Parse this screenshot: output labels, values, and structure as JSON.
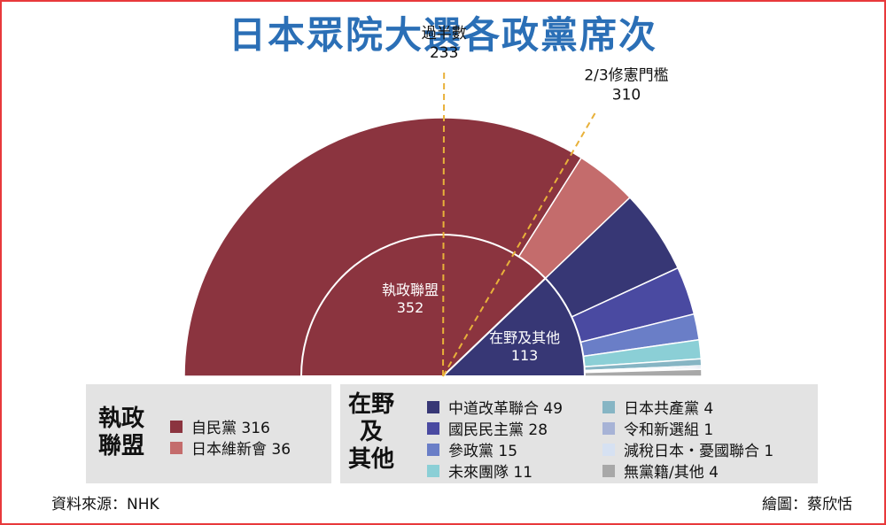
{
  "title": "日本眾院大選各政黨席次",
  "source": "資料來源：NHK",
  "credit": "繪圖：蔡欣恬",
  "chart_data": {
    "type": "pie",
    "shape": "semicircle",
    "total_seats": 465,
    "thresholds": [
      {
        "label": "過半數",
        "value": 233
      },
      {
        "label": "2/3修憲門檻",
        "value": 310
      }
    ],
    "inner": [
      {
        "name": "執政聯盟",
        "value": 352,
        "color": "#8b343f"
      },
      {
        "name": "在野及其他",
        "value": 113,
        "color": "#373775"
      }
    ],
    "outer": [
      {
        "name": "自民黨",
        "value": 316,
        "color": "#8b343f"
      },
      {
        "name": "日本維新會",
        "value": 36,
        "color": "#c46c6c"
      },
      {
        "name": "中道改革聯合",
        "value": 49,
        "color": "#373775"
      },
      {
        "name": "國民民主黨",
        "value": 28,
        "color": "#4a4aa1"
      },
      {
        "name": "參政黨",
        "value": 15,
        "color": "#6a7ec7"
      },
      {
        "name": "未來團隊",
        "value": 11,
        "color": "#8bcfd6"
      },
      {
        "name": "日本共產黨",
        "value": 4,
        "color": "#86b5c4"
      },
      {
        "name": "令和新選組",
        "value": 1,
        "color": "#a7b3d6"
      },
      {
        "name": "減稅日本・憂國聯合",
        "value": 1,
        "color": "#d6e1f2"
      },
      {
        "name": "無黨籍/其他",
        "value": 4,
        "color": "#a8a8a8"
      }
    ],
    "legend": {
      "ruling_title": [
        "執政",
        "聯盟"
      ],
      "opposition_title": [
        "在野",
        "及",
        "其他"
      ],
      "ruling": [
        {
          "text": "自民黨 316",
          "color": "#8b343f"
        },
        {
          "text": "日本維新會 36",
          "color": "#c46c6c"
        }
      ],
      "opposition_left": [
        {
          "text": "中道改革聯合 49",
          "color": "#373775"
        },
        {
          "text": "國民民主黨 28",
          "color": "#4a4aa1"
        },
        {
          "text": "參政黨 15",
          "color": "#6a7ec7"
        },
        {
          "text": "未來團隊 11",
          "color": "#8bcfd6"
        }
      ],
      "opposition_right": [
        {
          "text": "日本共產黨 4",
          "color": "#86b5c4"
        },
        {
          "text": "令和新選組 1",
          "color": "#a7b3d6"
        },
        {
          "text": "減稅日本・憂國聯合 1",
          "color": "#d6e1f2"
        },
        {
          "text": "無黨籍/其他 4",
          "color": "#a8a8a8"
        }
      ]
    }
  }
}
